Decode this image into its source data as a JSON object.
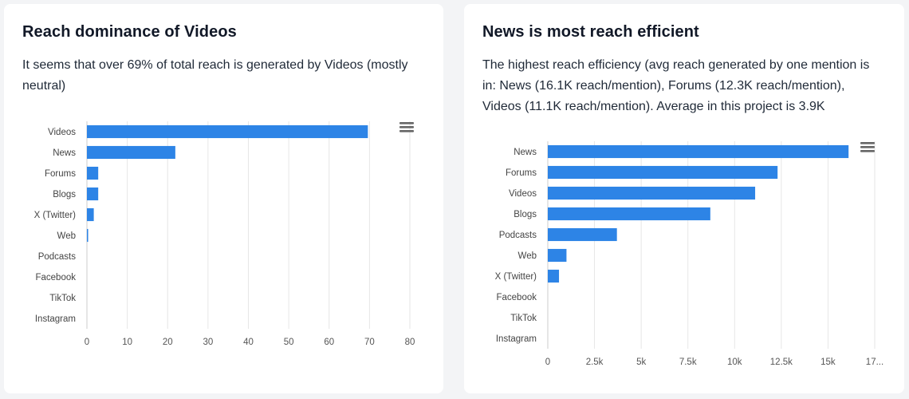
{
  "cards": [
    {
      "title": "Reach dominance of Videos",
      "description": "It seems that over 69% of total reach is generated by Videos (mostly neutral)"
    },
    {
      "title": "News is most reach efficient",
      "description": "The highest reach efficiency (avg reach generated by one mention is in: News (16.1K reach/mention), Forums (12.3K reach/mention), Videos (11.1K reach/mention). Average in this project is 3.9K"
    }
  ],
  "icons": {
    "chart_menu": "hamburger-menu-icon"
  },
  "colors": {
    "bar": "#2d84e6",
    "grid": "#e6e6e6",
    "axis": "#cccccc"
  },
  "chart_data": [
    {
      "type": "bar",
      "orientation": "horizontal",
      "categories": [
        "Videos",
        "News",
        "Forums",
        "Blogs",
        "X (Twitter)",
        "Web",
        "Podcasts",
        "Facebook",
        "TikTok",
        "Instagram"
      ],
      "values": [
        69.6,
        21.9,
        2.8,
        2.8,
        1.7,
        0.3,
        0,
        0,
        0,
        0
      ],
      "xlim": [
        0,
        80
      ],
      "xticks": [
        "0",
        "10",
        "20",
        "30",
        "40",
        "50",
        "60",
        "70",
        "80"
      ],
      "grid": true,
      "legend": "none",
      "title": "",
      "xlabel": "",
      "ylabel": ""
    },
    {
      "type": "bar",
      "orientation": "horizontal",
      "categories": [
        "News",
        "Forums",
        "Videos",
        "Blogs",
        "Podcasts",
        "Web",
        "X (Twitter)",
        "Facebook",
        "TikTok",
        "Instagram"
      ],
      "values": [
        16100,
        12300,
        11100,
        8700,
        3700,
        1000,
        600,
        0,
        0,
        0
      ],
      "xlim": [
        0,
        17500
      ],
      "xticks": [
        "0",
        "2.5k",
        "5k",
        "7.5k",
        "10k",
        "12.5k",
        "15k",
        "17..."
      ],
      "grid": true,
      "legend": "none",
      "title": "",
      "xlabel": "",
      "ylabel": ""
    }
  ]
}
